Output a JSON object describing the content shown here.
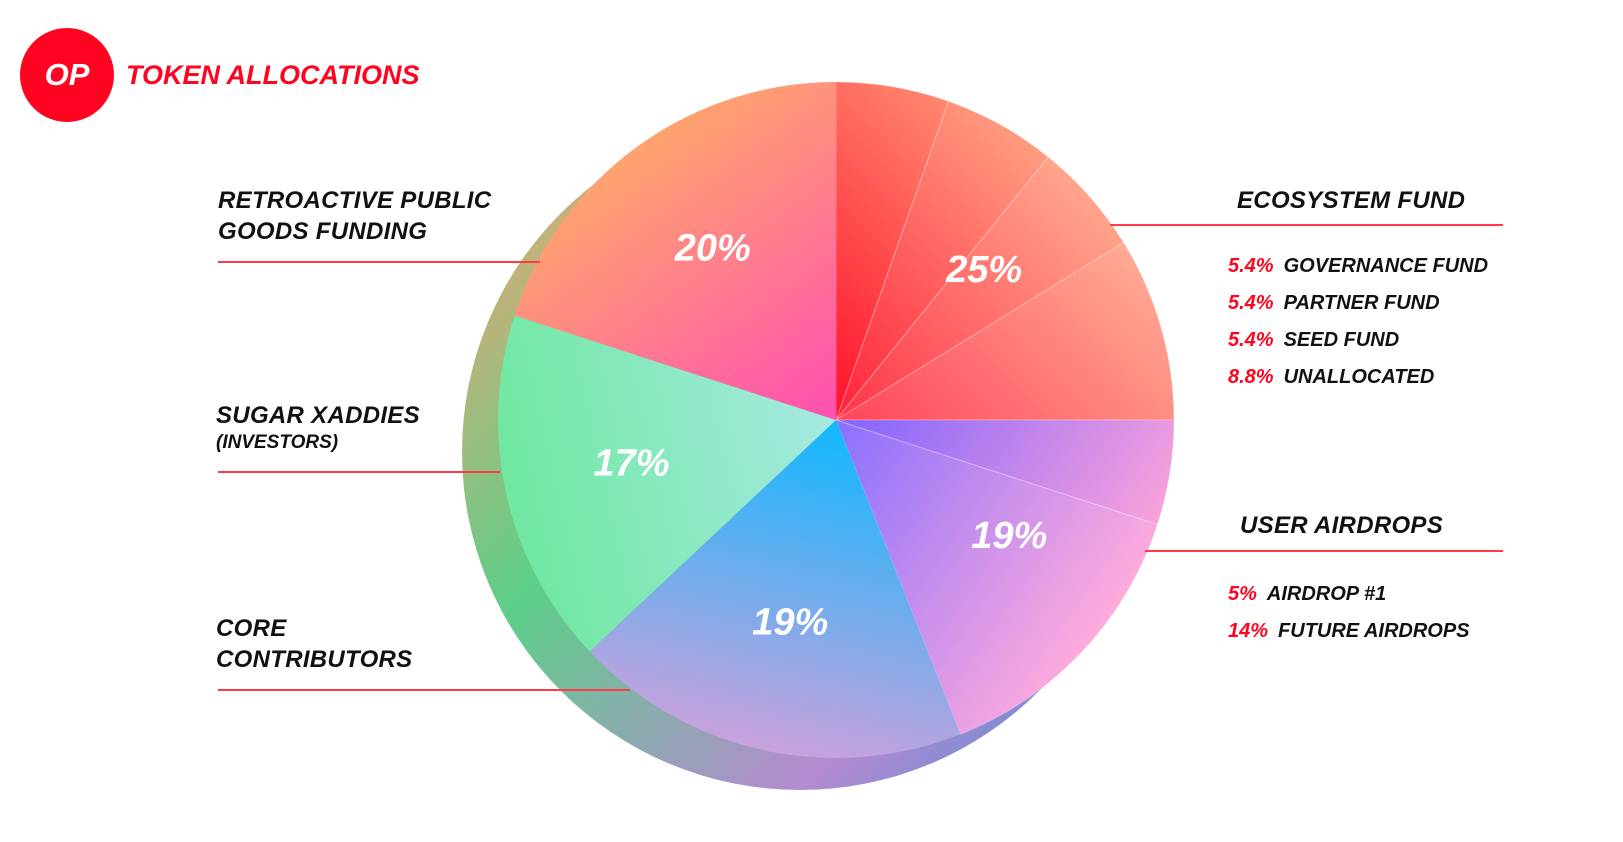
{
  "chart_data": {
    "type": "pie",
    "logo": "OP",
    "title": "TOKEN ALLOCATIONS",
    "categories": [
      "ECOSYSTEM FUND",
      "USER AIRDROPS",
      "CORE\nCONTRIBUTORS",
      "SUGAR XADDIES",
      "RETROACTIVE PUBLIC\nGOODS FUNDING"
    ],
    "category_notes": [
      null,
      null,
      null,
      "(INVESTORS)",
      null
    ],
    "values": [
      25,
      19,
      19,
      17,
      20
    ],
    "value_labels": [
      "25%",
      "19%",
      "19%",
      "17%",
      "20%"
    ],
    "colors": [
      [
        "#ff0420",
        "#ff9070"
      ],
      [
        "#7a5cff",
        "#ffa0d8"
      ],
      [
        "#10b8ff",
        "#c9a2dc"
      ],
      [
        "#a6e9e2",
        "#6fe8a0"
      ],
      [
        "#ff4fb2",
        "#ffa36e"
      ]
    ],
    "breakdown": [
      [
        {
          "value": 5.4,
          "value_label": "5.4%",
          "name": "GOVERNANCE FUND"
        },
        {
          "value": 5.4,
          "value_label": "5.4%",
          "name": "PARTNER FUND"
        },
        {
          "value": 5.4,
          "value_label": "5.4%",
          "name": "SEED FUND"
        },
        {
          "value": 8.8,
          "value_label": "8.8%",
          "name": "UNALLOCATED"
        }
      ],
      [
        {
          "value": 5,
          "value_label": "5%",
          "name": "AIRDROP #1"
        },
        {
          "value": 14,
          "value_label": "14%",
          "name": "FUTURE AIRDROPS"
        }
      ],
      null,
      null,
      null
    ]
  }
}
